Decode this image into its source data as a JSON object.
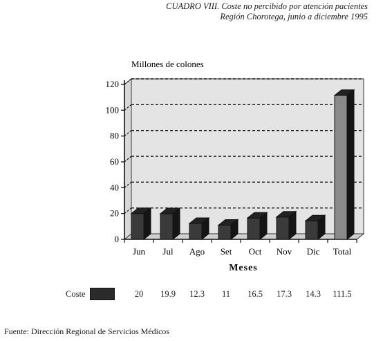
{
  "title_line1": "CUADRO VIII. Coste no percibido por atención pacientes",
  "title_line2": "Región Chorotega, junio a diciembre 1995",
  "source": "Fuente: Dirección Regional de Servicios Médicos",
  "chart_data": {
    "type": "bar",
    "title": "CUADRO VIII. Coste no percibido por atención pacientes",
    "subtitle": "Región Chorotega, junio a diciembre 1995",
    "ylabel": "Millones de colones",
    "xlabel": "Meses",
    "categories": [
      "Jun",
      "Jul",
      "Ago",
      "Set",
      "Oct",
      "Nov",
      "Dic",
      "Total"
    ],
    "series": [
      {
        "name": "Coste",
        "values": [
          20,
          19.9,
          12.3,
          11,
          16.5,
          17.3,
          14.3,
          111.5
        ]
      }
    ],
    "value_labels": [
      "20",
      "19.9",
      "12.3",
      "11",
      "16.5",
      "17.3",
      "14.3",
      "111.5"
    ],
    "yticks": [
      0,
      20,
      40,
      60,
      80,
      100,
      120
    ],
    "ylim": [
      0,
      120
    ],
    "grid": true,
    "legend": "bottom-left"
  },
  "colors": {
    "bar_front": "#3a3a3a",
    "bar_top": "#222222",
    "bar_side": "#151515",
    "total_front": "#8a8a8a",
    "plot_bg": "#e4e4e4"
  }
}
